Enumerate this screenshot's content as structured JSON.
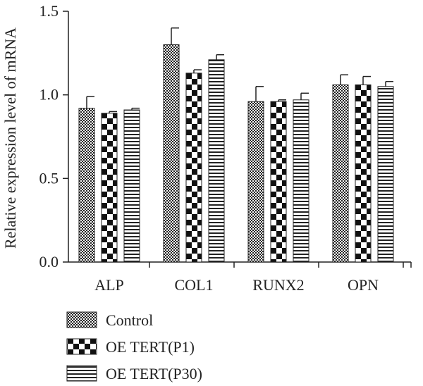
{
  "chart_data": {
    "type": "bar",
    "title": "",
    "xlabel": "",
    "ylabel": "Relative expression level of mRNA",
    "ylim": [
      0,
      1.5
    ],
    "yticks": [
      "0.0",
      "0.5",
      "1.0",
      "1.5"
    ],
    "categories": [
      "ALP",
      "COL1",
      "RUNX2",
      "OPN"
    ],
    "series": [
      {
        "name": "Control",
        "pattern": "fine-checker",
        "values": [
          0.92,
          1.3,
          0.96,
          1.06
        ],
        "errors": [
          0.07,
          0.1,
          0.09,
          0.06
        ]
      },
      {
        "name": "OE TERT(P1)",
        "pattern": "coarse-checker",
        "values": [
          0.89,
          1.13,
          0.96,
          1.06
        ],
        "errors": [
          0.01,
          0.02,
          0.01,
          0.05
        ]
      },
      {
        "name": "OE TERT(P30)",
        "pattern": "horizontal-lines",
        "values": [
          0.91,
          1.21,
          0.97,
          1.05
        ],
        "errors": [
          0.01,
          0.03,
          0.04,
          0.03
        ]
      }
    ],
    "legend_position": "bottom-left",
    "grid": false,
    "colors": {
      "ink": "#222222",
      "background": "#ffffff"
    }
  }
}
